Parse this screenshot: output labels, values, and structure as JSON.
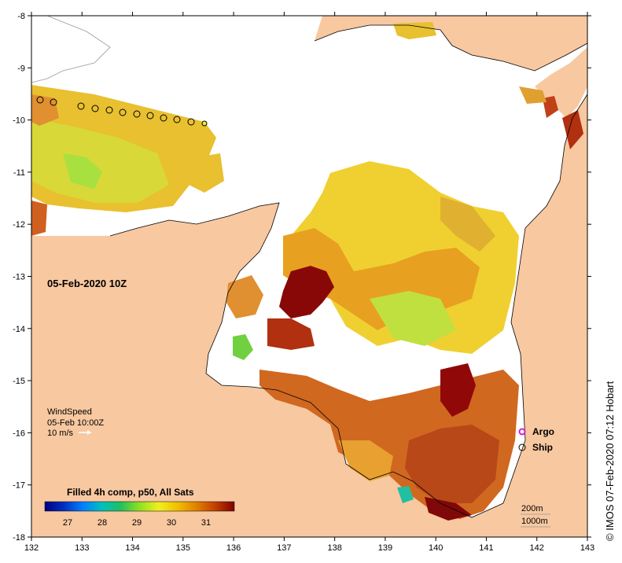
{
  "map": {
    "date_label": "05-Feb-2020 10Z",
    "x_ticks": [
      "132",
      "133",
      "134",
      "135",
      "136",
      "137",
      "138",
      "139",
      "140",
      "141",
      "142",
      "143"
    ],
    "y_ticks": [
      "-8",
      "-9",
      "-10",
      "-11",
      "-12",
      "-13",
      "-14",
      "-15",
      "-16",
      "-17",
      "-18"
    ],
    "wind": {
      "title": "WindSpeed",
      "time": "05-Feb 10:00Z",
      "scale": "10 m/s"
    },
    "legend": [
      {
        "label": "Argo",
        "marker": "magenta-circle",
        "color": "#d020d0"
      },
      {
        "label": "Ship",
        "marker": "black-circle",
        "color": "#000000"
      }
    ],
    "colorbar": {
      "title": "Filled 4h comp, p50, All Sats",
      "ticks": [
        "27",
        "28",
        "29",
        "30",
        "31"
      ],
      "colors": [
        "#000080",
        "#0030c0",
        "#0080ff",
        "#00c0c0",
        "#20c060",
        "#90e020",
        "#f0f020",
        "#f0c000",
        "#e08000",
        "#c04000",
        "#800000"
      ]
    },
    "depth_legend": [
      "200m",
      "1000m"
    ],
    "copyright": "© IMOS 07-Feb-2020 07:12 Hobart",
    "colors": {
      "land": "#f8c8a0",
      "no_data": "#ffffff"
    }
  }
}
